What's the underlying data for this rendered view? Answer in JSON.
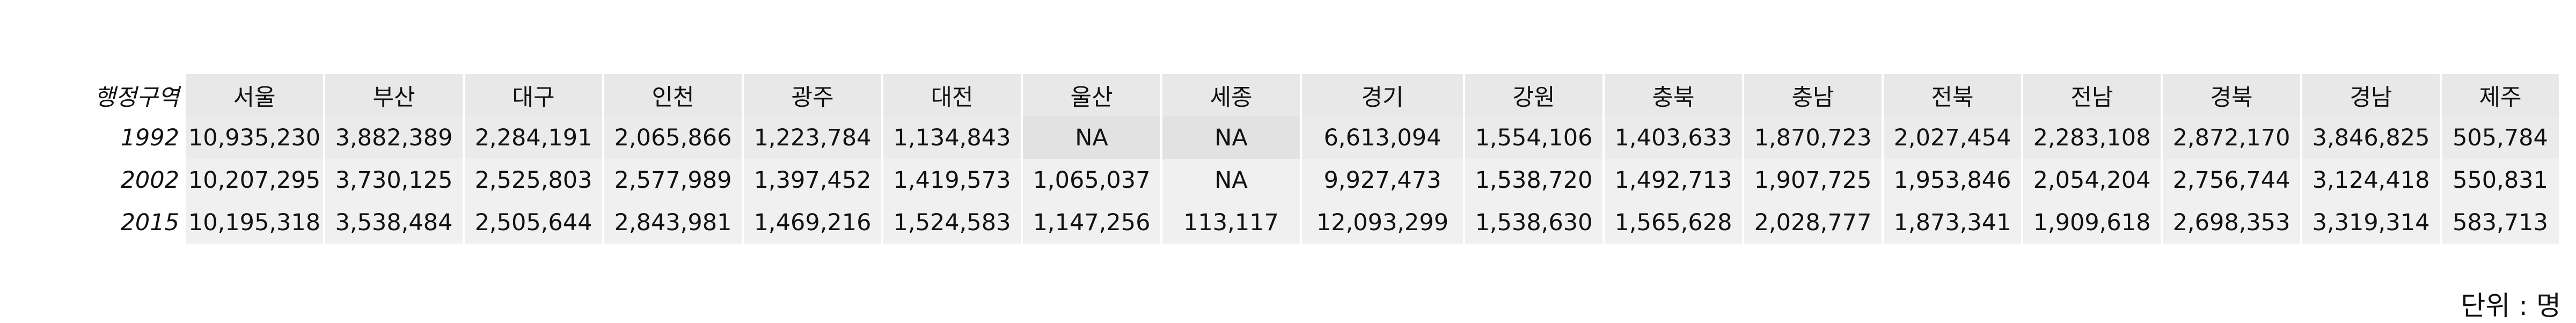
{
  "table": {
    "corner_label": "행정구역",
    "columns": [
      "서울",
      "부산",
      "대구",
      "인천",
      "광주",
      "대전",
      "울산",
      "세종",
      "경기",
      "강원",
      "충북",
      "충남",
      "전북",
      "전남",
      "경북",
      "경남",
      "제주"
    ],
    "rows": [
      {
        "year": "1992",
        "values": [
          "10,935,230",
          "3,882,389",
          "2,284,191",
          "2,065,866",
          "1,223,784",
          "1,134,843",
          "NA",
          "NA",
          "6,613,094",
          "1,554,106",
          "1,403,633",
          "1,870,723",
          "2,027,454",
          "2,283,108",
          "2,872,170",
          "3,846,825",
          "505,784"
        ]
      },
      {
        "year": "2002",
        "values": [
          "10,207,295",
          "3,730,125",
          "2,525,803",
          "2,577,989",
          "1,397,452",
          "1,419,573",
          "1,065,037",
          "NA",
          "9,927,473",
          "1,538,720",
          "1,492,713",
          "1,907,725",
          "1,953,846",
          "2,054,204",
          "2,756,744",
          "3,124,418",
          "550,831"
        ]
      },
      {
        "year": "2015",
        "values": [
          "10,195,318",
          "3,538,484",
          "2,505,644",
          "2,843,981",
          "1,469,216",
          "1,524,583",
          "1,147,256",
          "113,117",
          "12,093,299",
          "1,538,630",
          "1,565,628",
          "2,028,777",
          "1,873,341",
          "1,909,618",
          "2,698,353",
          "3,319,314",
          "583,713"
        ]
      }
    ]
  },
  "unit_note": "단위 : 명"
}
